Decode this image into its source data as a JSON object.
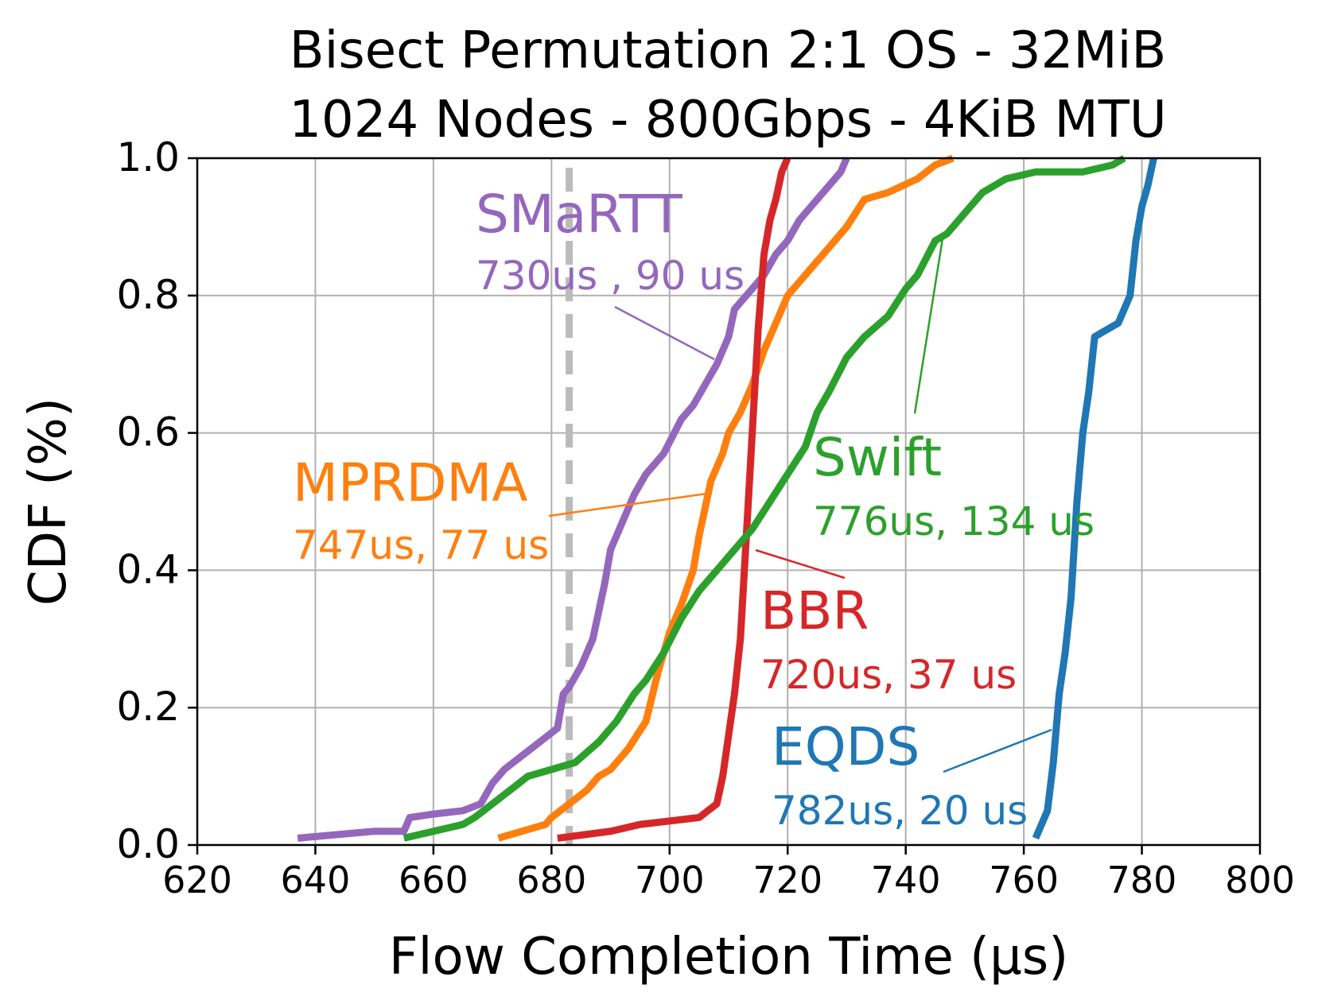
{
  "chart_data": {
    "type": "line",
    "title_lines": [
      "Bisect Permutation 2:1 OS - 32MiB",
      "1024 Nodes - 800Gbps - 4KiB MTU"
    ],
    "xlabel": "Flow Completion Time (µs)",
    "ylabel": "CDF (%)",
    "xlim": [
      620,
      800
    ],
    "ylim": [
      0,
      1
    ],
    "xticks": [
      620,
      640,
      660,
      680,
      700,
      720,
      740,
      760,
      780,
      800
    ],
    "xtick_labels": [
      "620",
      "640",
      "660",
      "680",
      "700",
      "720",
      "740",
      "760",
      "780",
      "800"
    ],
    "yticks": [
      0,
      0.2,
      0.4,
      0.6,
      0.8,
      1.0
    ],
    "ytick_labels": [
      "0.0",
      "0.2",
      "0.4",
      "0.6",
      "0.8",
      "1.0"
    ],
    "grid": true,
    "reference_line": {
      "x": 683,
      "color": "#bbbbbb",
      "style": "dashed"
    },
    "series": [
      {
        "name": "SMaRTT",
        "stats": "730us , 90 us",
        "color": "#9467bd",
        "x": [
          637,
          650,
          655,
          656,
          660,
          665,
          668,
          670,
          672,
          675,
          678,
          681,
          682,
          683,
          685,
          687,
          689,
          690,
          692,
          694,
          696,
          699,
          702,
          704,
          706,
          708,
          709,
          710,
          711,
          712,
          714,
          716,
          718,
          720,
          722,
          724,
          727,
          729,
          730
        ],
        "y": [
          0.01,
          0.02,
          0.02,
          0.04,
          0.045,
          0.05,
          0.06,
          0.09,
          0.11,
          0.13,
          0.15,
          0.17,
          0.22,
          0.23,
          0.26,
          0.3,
          0.38,
          0.43,
          0.47,
          0.51,
          0.54,
          0.57,
          0.62,
          0.64,
          0.67,
          0.7,
          0.72,
          0.74,
          0.78,
          0.79,
          0.81,
          0.83,
          0.86,
          0.88,
          0.91,
          0.93,
          0.96,
          0.98,
          1.0
        ]
      },
      {
        "name": "MPRDMA",
        "stats": "747us, 77 us",
        "color": "#ff7f0e",
        "x": [
          671,
          675,
          679,
          680,
          683,
          686,
          688,
          690,
          693,
          696,
          698,
          700,
          702,
          704,
          705,
          707,
          709,
          710,
          712,
          714,
          716,
          718,
          720,
          722,
          724,
          726,
          728,
          730,
          733,
          737,
          742,
          745,
          748
        ],
        "y": [
          0.01,
          0.02,
          0.03,
          0.04,
          0.06,
          0.08,
          0.1,
          0.11,
          0.14,
          0.18,
          0.25,
          0.31,
          0.35,
          0.4,
          0.45,
          0.53,
          0.57,
          0.6,
          0.63,
          0.67,
          0.72,
          0.76,
          0.8,
          0.82,
          0.84,
          0.86,
          0.88,
          0.9,
          0.94,
          0.95,
          0.97,
          0.99,
          1.0
        ]
      },
      {
        "name": "BBR",
        "stats": "720us, 37 us",
        "color": "#d62728",
        "x": [
          681,
          690,
          695,
          700,
          705,
          708,
          709,
          711,
          712,
          713,
          714,
          715,
          716,
          717,
          718,
          719,
          720
        ],
        "y": [
          0.01,
          0.02,
          0.03,
          0.035,
          0.04,
          0.06,
          0.1,
          0.22,
          0.3,
          0.45,
          0.6,
          0.75,
          0.86,
          0.91,
          0.94,
          0.98,
          1.0
        ]
      },
      {
        "name": "Swift",
        "stats": "776us, 134 us",
        "color": "#2ca02c",
        "x": [
          655,
          660,
          665,
          667,
          670,
          673,
          676,
          680,
          684,
          688,
          691,
          694,
          696,
          699,
          702,
          705,
          708,
          711,
          714,
          717,
          720,
          723,
          725,
          727,
          730,
          733,
          737,
          740,
          742,
          745,
          747,
          750,
          753,
          757,
          762,
          770,
          775,
          777
        ],
        "y": [
          0.01,
          0.02,
          0.03,
          0.04,
          0.06,
          0.08,
          0.1,
          0.11,
          0.12,
          0.15,
          0.18,
          0.22,
          0.24,
          0.28,
          0.33,
          0.37,
          0.4,
          0.43,
          0.46,
          0.5,
          0.54,
          0.58,
          0.63,
          0.66,
          0.71,
          0.74,
          0.77,
          0.81,
          0.83,
          0.88,
          0.89,
          0.92,
          0.95,
          0.97,
          0.98,
          0.98,
          0.99,
          1.0
        ]
      },
      {
        "name": "EQDS",
        "stats": "782us, 20 us",
        "color": "#1f77b4",
        "x": [
          762,
          764,
          765,
          766,
          767,
          768,
          769,
          770,
          771,
          772,
          774,
          776,
          778,
          779,
          780,
          781,
          782
        ],
        "y": [
          0.01,
          0.05,
          0.12,
          0.22,
          0.28,
          0.36,
          0.5,
          0.6,
          0.66,
          0.74,
          0.75,
          0.76,
          0.8,
          0.88,
          0.93,
          0.96,
          1.0
        ]
      }
    ]
  }
}
